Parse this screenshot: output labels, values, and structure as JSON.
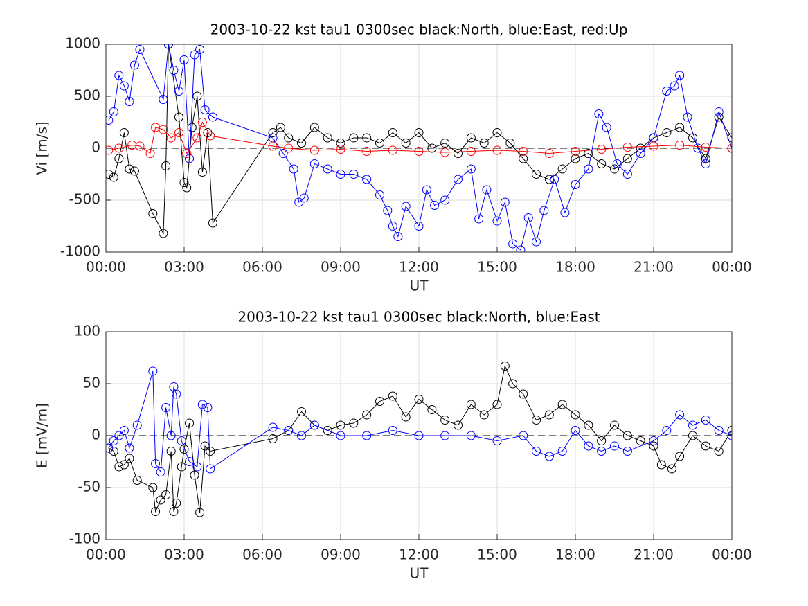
{
  "chart_data": [
    {
      "type": "line",
      "title": "2003-10-22 kst tau1 0300sec black:North, blue:East, red:Up",
      "xlabel": "UT",
      "ylabel": "Vi [m/s]",
      "grid": true,
      "xlim": [
        0,
        24
      ],
      "xticks": [
        {
          "value": 0,
          "label": "00:00"
        },
        {
          "value": 3,
          "label": "03:00"
        },
        {
          "value": 6,
          "label": "06:00"
        },
        {
          "value": 9,
          "label": "09:00"
        },
        {
          "value": 12,
          "label": "12:00"
        },
        {
          "value": 15,
          "label": "15:00"
        },
        {
          "value": 18,
          "label": "18:00"
        },
        {
          "value": 21,
          "label": "21:00"
        },
        {
          "value": 24,
          "label": "00:00"
        }
      ],
      "ylim": [
        -1000,
        1000
      ],
      "yticks": [
        -1000,
        -500,
        0,
        500,
        1000
      ],
      "series": [
        {
          "color": "#000000",
          "x": [
            0.1,
            0.3,
            0.5,
            0.7,
            0.9,
            1.1,
            1.8,
            2.2,
            2.3,
            2.4,
            2.8,
            3.0,
            3.1,
            3.3,
            3.5,
            3.7,
            3.9,
            4.1,
            6.4,
            6.7,
            7.0,
            7.5,
            8.0,
            8.5,
            9.0,
            9.5,
            10.0,
            10.5,
            11.0,
            11.5,
            12.0,
            12.5,
            13.0,
            13.5,
            14.0,
            14.5,
            15.0,
            15.5,
            16.0,
            16.5,
            17.0,
            17.5,
            18.0,
            18.5,
            19.0,
            19.5,
            20.0,
            20.5,
            21.0,
            21.5,
            22.0,
            22.5,
            23.0,
            23.5,
            24.0
          ],
          "values": [
            -250,
            -280,
            -100,
            150,
            -200,
            -220,
            -630,
            -820,
            -170,
            1000,
            300,
            -330,
            -380,
            200,
            500,
            -230,
            150,
            -720,
            150,
            200,
            100,
            50,
            200,
            100,
            50,
            100,
            100,
            50,
            150,
            50,
            150,
            0,
            50,
            -50,
            100,
            50,
            150,
            50,
            -100,
            -250,
            -300,
            -200,
            -100,
            -50,
            -150,
            -200,
            -100,
            0,
            100,
            150,
            200,
            100,
            -100,
            300,
            100
          ]
        },
        {
          "color": "#0000ff",
          "x": [
            0.1,
            0.3,
            0.5,
            0.7,
            0.9,
            1.1,
            1.3,
            2.2,
            2.4,
            2.6,
            2.8,
            3.0,
            3.2,
            3.4,
            3.6,
            3.8,
            4.1,
            6.4,
            6.8,
            7.2,
            7.4,
            7.6,
            8.0,
            8.5,
            9.0,
            9.5,
            10.0,
            10.5,
            10.8,
            11.0,
            11.2,
            11.5,
            12.0,
            12.3,
            12.6,
            13.0,
            13.5,
            14.0,
            14.3,
            14.6,
            15.0,
            15.3,
            15.6,
            15.9,
            16.2,
            16.5,
            16.8,
            17.2,
            17.6,
            18.0,
            18.5,
            18.9,
            19.2,
            19.6,
            20.0,
            20.5,
            21.0,
            21.5,
            21.8,
            22.0,
            22.3,
            22.7,
            23.0,
            23.5,
            24.0
          ],
          "values": [
            270,
            350,
            700,
            600,
            450,
            800,
            950,
            470,
            1000,
            750,
            550,
            850,
            -100,
            900,
            950,
            370,
            300,
            100,
            -50,
            -200,
            -520,
            -480,
            -150,
            -200,
            -250,
            -250,
            -300,
            -450,
            -600,
            -750,
            -850,
            -560,
            -750,
            -400,
            -550,
            -500,
            -300,
            -200,
            -680,
            -400,
            -700,
            -520,
            -920,
            -980,
            -670,
            -900,
            -600,
            -300,
            -620,
            -350,
            -200,
            330,
            200,
            -150,
            -250,
            -50,
            100,
            550,
            600,
            700,
            300,
            0,
            -150,
            350,
            0
          ]
        },
        {
          "color": "#ff0000",
          "x": [
            0.1,
            0.5,
            1.0,
            1.3,
            1.7,
            1.9,
            2.2,
            2.5,
            2.8,
            3.1,
            3.5,
            3.7,
            4.0,
            6.4,
            7,
            8,
            9,
            10,
            11,
            12,
            13,
            14,
            15,
            16,
            17,
            18,
            19,
            20,
            21,
            22,
            23,
            24
          ],
          "values": [
            -20,
            0,
            30,
            20,
            -50,
            200,
            180,
            100,
            150,
            -50,
            100,
            250,
            120,
            20,
            0,
            -20,
            -10,
            -30,
            -20,
            -30,
            -40,
            -30,
            -20,
            -30,
            -50,
            -30,
            -10,
            10,
            20,
            30,
            10,
            0
          ]
        }
      ]
    },
    {
      "type": "line",
      "title": "2003-10-22 kst tau1 0300sec black:North, blue:East",
      "xlabel": "UT",
      "ylabel": "E [mV/m]",
      "grid": true,
      "xlim": [
        0,
        24
      ],
      "xticks": [
        {
          "value": 0,
          "label": "00:00"
        },
        {
          "value": 3,
          "label": "03:00"
        },
        {
          "value": 6,
          "label": "06:00"
        },
        {
          "value": 9,
          "label": "09:00"
        },
        {
          "value": 12,
          "label": "12:00"
        },
        {
          "value": 15,
          "label": "15:00"
        },
        {
          "value": 18,
          "label": "18:00"
        },
        {
          "value": 21,
          "label": "21:00"
        },
        {
          "value": 24,
          "label": "00:00"
        }
      ],
      "ylim": [
        -100,
        100
      ],
      "yticks": [
        -100,
        -50,
        0,
        50,
        100
      ],
      "series": [
        {
          "color": "#000000",
          "x": [
            0.1,
            0.3,
            0.5,
            0.7,
            0.9,
            1.2,
            1.8,
            1.9,
            2.1,
            2.3,
            2.5,
            2.6,
            2.7,
            2.9,
            3.0,
            3.2,
            3.4,
            3.6,
            3.8,
            4.0,
            6.4,
            7,
            7.5,
            8,
            8.5,
            9,
            9.5,
            10,
            10.5,
            11,
            11.5,
            12,
            12.5,
            13,
            13.5,
            14,
            14.5,
            15,
            15.3,
            15.6,
            16,
            16.5,
            17,
            17.5,
            18,
            18.5,
            19,
            19.5,
            20,
            20.5,
            21,
            21.3,
            21.7,
            22,
            22.5,
            23,
            23.5,
            24
          ],
          "values": [
            -12,
            -15,
            -30,
            -28,
            -22,
            -43,
            -50,
            -73,
            -62,
            -57,
            -15,
            -73,
            -65,
            -30,
            -13,
            12,
            -38,
            -74,
            -10,
            -15,
            -3,
            5,
            23,
            10,
            5,
            10,
            12,
            20,
            33,
            38,
            18,
            35,
            25,
            15,
            10,
            30,
            20,
            30,
            67,
            50,
            40,
            15,
            20,
            30,
            20,
            10,
            -5,
            10,
            0,
            -5,
            -10,
            -28,
            -32,
            -20,
            0,
            -10,
            -15,
            5
          ]
        },
        {
          "color": "#0000ff",
          "x": [
            0.1,
            0.3,
            0.5,
            0.7,
            0.9,
            1.2,
            1.8,
            1.9,
            2.1,
            2.3,
            2.5,
            2.6,
            2.7,
            2.9,
            3.2,
            3.5,
            3.7,
            3.9,
            4.0,
            6.4,
            7,
            7.5,
            8,
            9,
            10,
            11,
            12,
            13,
            14,
            15,
            16,
            16.5,
            17,
            17.5,
            18,
            18.5,
            19,
            19.5,
            20,
            21,
            21.5,
            22,
            22.5,
            23,
            23.5,
            24
          ],
          "values": [
            -12,
            -5,
            0,
            5,
            -12,
            10,
            62,
            -27,
            -35,
            27,
            0,
            47,
            40,
            -5,
            -25,
            -30,
            30,
            27,
            -32,
            8,
            5,
            0,
            10,
            0,
            0,
            5,
            0,
            0,
            0,
            -5,
            0,
            -15,
            -20,
            -15,
            5,
            -10,
            -15,
            -10,
            -15,
            -5,
            5,
            20,
            10,
            15,
            5,
            0
          ]
        }
      ]
    }
  ]
}
